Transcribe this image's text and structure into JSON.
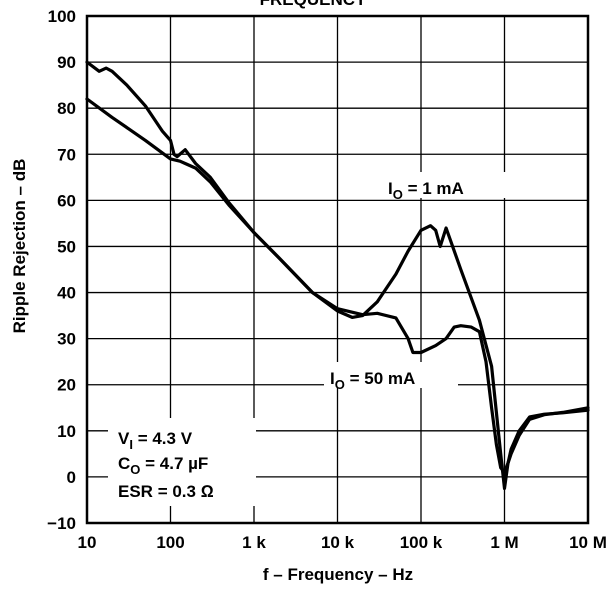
{
  "chart_data": {
    "type": "line",
    "title": "FREQUENCY",
    "xlabel": "f – Frequency – Hz",
    "ylabel": "Ripple Rejection – dB",
    "x_scale": "log",
    "xlim": [
      10,
      10000000
    ],
    "ylim": [
      -10,
      100
    ],
    "x_ticks": [
      10,
      100,
      1000,
      10000,
      100000,
      1000000,
      10000000
    ],
    "x_tick_labels": [
      "10",
      "100",
      "1 k",
      "10 k",
      "100 k",
      "1 M",
      "10 M"
    ],
    "y_ticks": [
      -10,
      0,
      10,
      20,
      30,
      40,
      50,
      60,
      70,
      80,
      90,
      100
    ],
    "y_tick_labels": [
      "−10",
      "0",
      "10",
      "20",
      "30",
      "40",
      "50",
      "60",
      "70",
      "80",
      "90",
      "100"
    ],
    "grid": true,
    "series": [
      {
        "name": "IO = 1 mA",
        "x": [
          10,
          14,
          17,
          20,
          30,
          50,
          80,
          100,
          110,
          120,
          150,
          200,
          300,
          500,
          1000,
          2000,
          5000,
          10000,
          15000,
          20000,
          30000,
          50000,
          70000,
          100000,
          130000,
          150000,
          170000,
          200000,
          300000,
          500000,
          700000,
          900000,
          1000000,
          1100000,
          1200000,
          1500000,
          2000000,
          3000000,
          5000000,
          10000000
        ],
        "y": [
          90,
          88,
          88.7,
          88,
          85,
          80.5,
          75,
          73,
          70,
          69.5,
          71,
          68,
          65,
          59.5,
          53,
          47.5,
          40,
          36,
          34.6,
          35,
          38,
          44,
          49,
          53.5,
          54.5,
          53.5,
          50,
          54,
          45,
          34,
          24,
          5,
          -2.5,
          3,
          6,
          10,
          13,
          13.6,
          13.9,
          14.5
        ]
      },
      {
        "name": "IO = 50 mA",
        "x": [
          10,
          20,
          50,
          100,
          130,
          150,
          200,
          300,
          500,
          1000,
          2000,
          5000,
          10000,
          20000,
          30000,
          50000,
          70000,
          80000,
          100000,
          150000,
          200000,
          250000,
          300000,
          400000,
          500000,
          600000,
          700000,
          800000,
          900000,
          1000000,
          1100000,
          1200000,
          1500000,
          2000000,
          3000000,
          5000000,
          10000000
        ],
        "y": [
          82,
          78,
          73,
          69,
          68.5,
          68,
          67,
          64,
          59,
          53,
          47.5,
          40,
          36.5,
          35.2,
          35.5,
          34.5,
          30,
          27,
          27,
          28.5,
          30,
          32.5,
          32.8,
          32.5,
          31.5,
          25,
          15,
          7,
          2,
          1,
          3,
          5,
          9,
          12.5,
          13.5,
          14,
          15
        ]
      }
    ],
    "annotations": {
      "io_1ma": {
        "main": "I",
        "sub": "O",
        "rest": " = 1 mA"
      },
      "io_50ma": {
        "main": "I",
        "sub": "O",
        "rest": " = 50 mA"
      },
      "conditions": [
        {
          "main": "V",
          "sub": "I",
          "rest": " = 4.3 V"
        },
        {
          "main": "C",
          "sub": "O",
          "rest": " = 4.7 µF"
        },
        {
          "main": "ESR",
          "sub": "",
          "rest": " = 0.3 Ω"
        }
      ]
    }
  }
}
